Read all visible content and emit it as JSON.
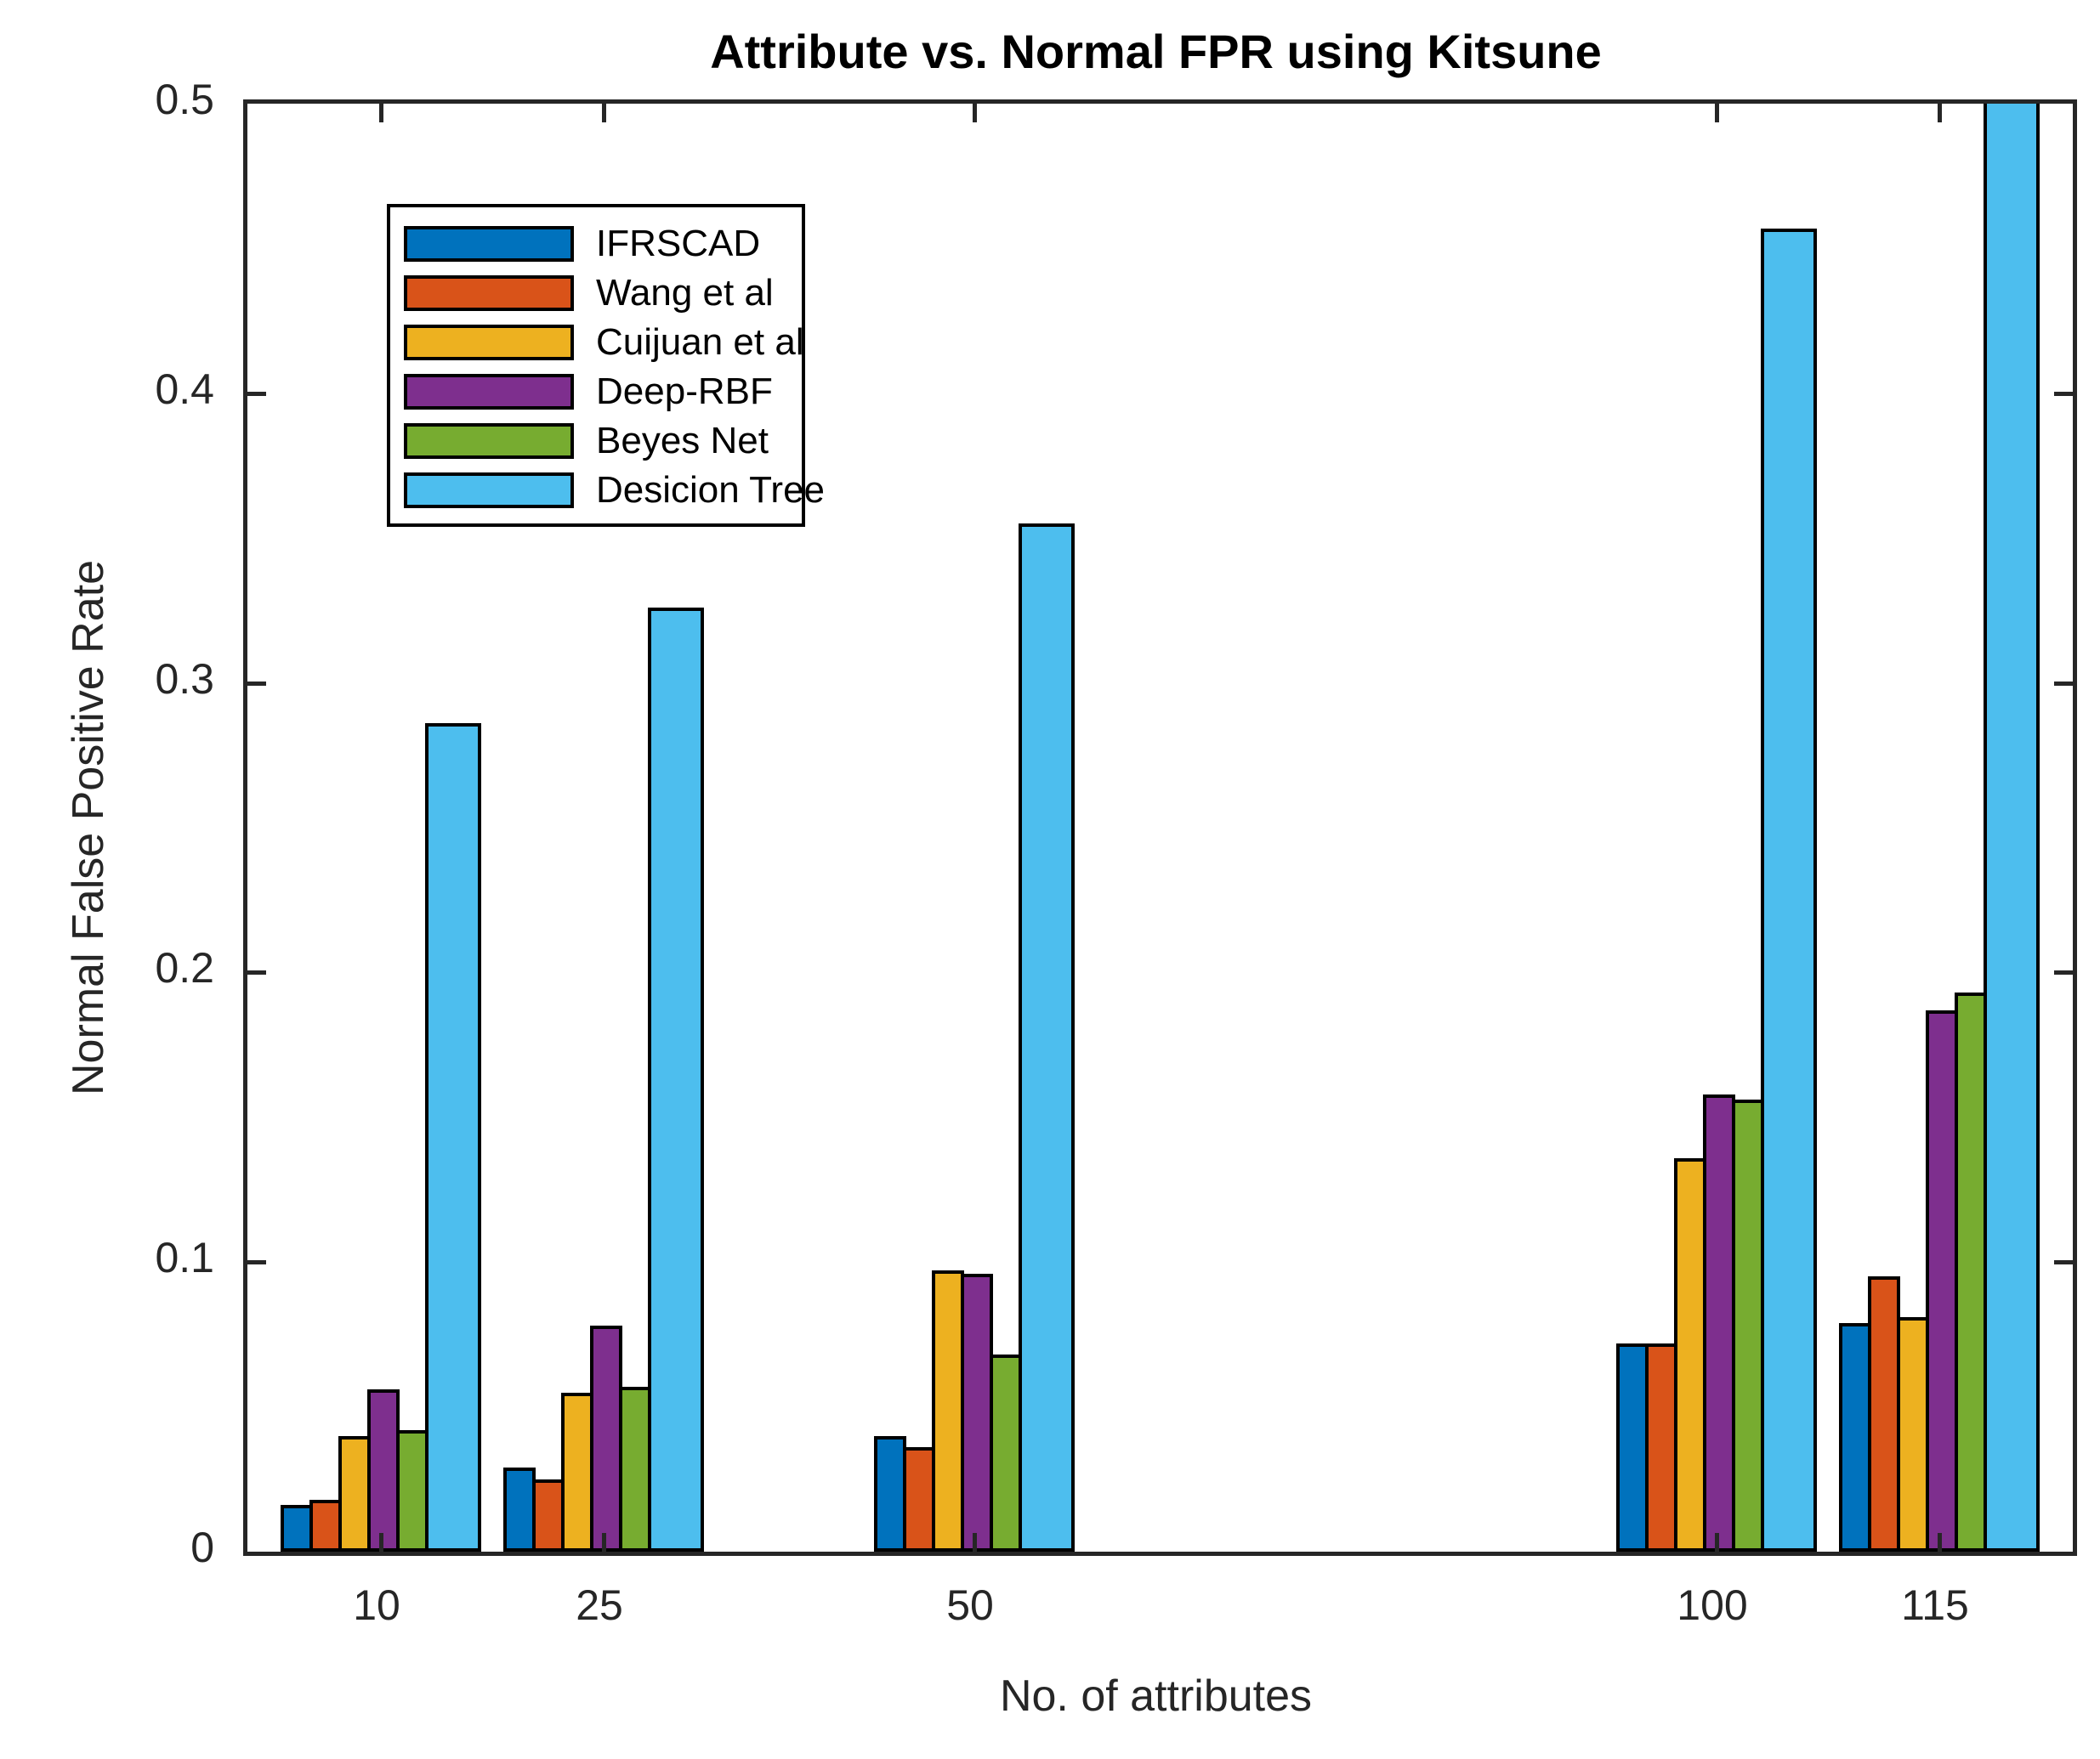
{
  "chart_data": {
    "type": "bar",
    "title": "Attribute vs. Normal FPR using Kitsune",
    "xlabel": "No. of attributes",
    "ylabel": "Normal False Positive Rate",
    "categories": [
      10,
      25,
      50,
      100,
      115
    ],
    "x_axis_numeric": true,
    "xlim": [
      1,
      124
    ],
    "ylim": [
      0,
      0.5
    ],
    "yticks": [
      0,
      0.1,
      0.2,
      0.3,
      0.4,
      0.5
    ],
    "xticks": [
      10,
      25,
      50,
      100,
      115
    ],
    "grid": false,
    "legend_position": "upper-left-inside",
    "axis_color": "#262626",
    "bar_edge_color": "#000000",
    "series": [
      {
        "name": "IFRSCAD",
        "color": "#0072BD",
        "values": [
          0.016,
          0.029,
          0.04,
          0.072,
          0.079
        ]
      },
      {
        "name": "Wang et al",
        "color": "#D95319",
        "values": [
          0.018,
          0.025,
          0.036,
          0.072,
          0.095
        ]
      },
      {
        "name": "Cuijuan et al",
        "color": "#EDB120",
        "values": [
          0.04,
          0.055,
          0.097,
          0.136,
          0.081
        ]
      },
      {
        "name": "Deep-RBF",
        "color": "#7E2F8E",
        "values": [
          0.056,
          0.078,
          0.096,
          0.158,
          0.187
        ]
      },
      {
        "name": "Beyes Net",
        "color": "#77AC30",
        "values": [
          0.042,
          0.057,
          0.068,
          0.156,
          0.193
        ]
      },
      {
        "name": "Desicion Tree",
        "color": "#4DBEEE",
        "values": [
          0.286,
          0.326,
          0.355,
          0.457,
          0.52
        ]
      }
    ]
  }
}
